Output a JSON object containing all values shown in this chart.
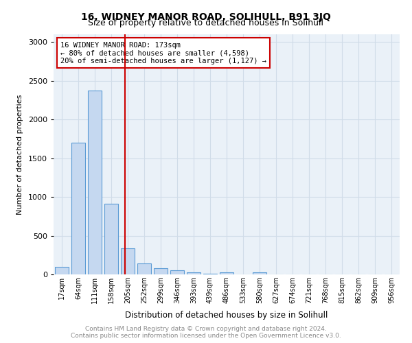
{
  "title1": "16, WIDNEY MANOR ROAD, SOLIHULL, B91 3JQ",
  "title2": "Size of property relative to detached houses in Solihull",
  "xlabel": "Distribution of detached houses by size in Solihull",
  "ylabel": "Number of detached properties",
  "footnote": "Contains HM Land Registry data © Crown copyright and database right 2024.\nContains public sector information licensed under the Open Government Licence v3.0.",
  "bin_labels": [
    "17sqm",
    "64sqm",
    "111sqm",
    "158sqm",
    "205sqm",
    "252sqm",
    "299sqm",
    "346sqm",
    "393sqm",
    "439sqm",
    "486sqm",
    "533sqm",
    "580sqm",
    "627sqm",
    "674sqm",
    "721sqm",
    "768sqm",
    "815sqm",
    "862sqm",
    "909sqm",
    "956sqm"
  ],
  "bar_values": [
    100,
    1700,
    2370,
    910,
    340,
    145,
    80,
    55,
    30,
    10,
    30,
    0,
    25,
    0,
    0,
    0,
    0,
    0,
    0,
    0,
    0
  ],
  "bar_color": "#c5d8f0",
  "bar_edge_color": "#5b9bd5",
  "annotation_line1": "16 WIDNEY MANOR ROAD: 173sqm",
  "annotation_line2": "← 80% of detached houses are smaller (4,598)",
  "annotation_line3": "20% of semi-detached houses are larger (1,127) →",
  "red_line_color": "#cc0000",
  "grid_color": "#d0dce8",
  "background_color": "#eaf1f8",
  "ylim": [
    0,
    3100
  ],
  "yticks": [
    0,
    500,
    1000,
    1500,
    2000,
    2500,
    3000
  ]
}
